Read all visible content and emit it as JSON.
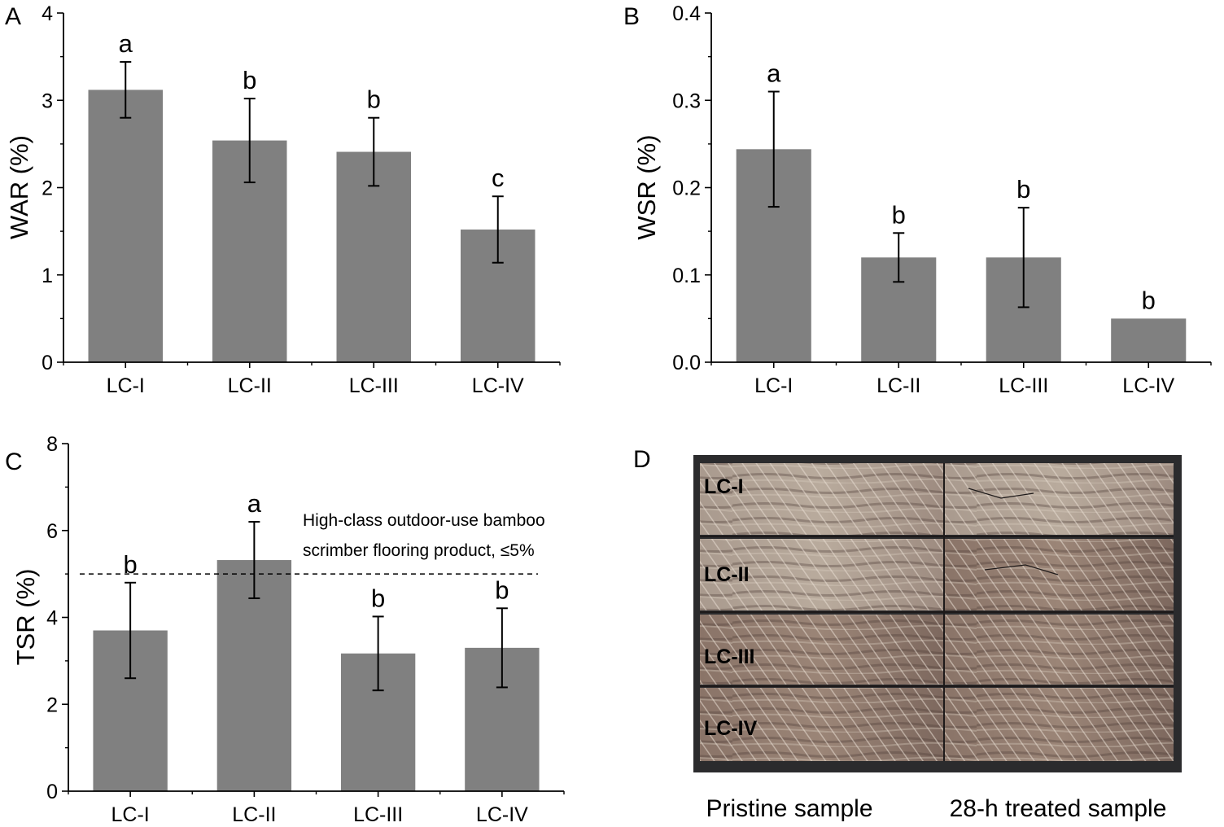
{
  "chart_data": [
    {
      "panel": "A",
      "type": "bar",
      "categories": [
        "LC-I",
        "LC-II",
        "LC-III",
        "LC-IV"
      ],
      "values": [
        3.12,
        2.54,
        2.41,
        1.52
      ],
      "errors": [
        0.32,
        0.48,
        0.39,
        0.38
      ],
      "letters": [
        "a",
        "b",
        "b",
        "c"
      ],
      "xlabel": "",
      "ylabel": "WAR (%)",
      "ylim": [
        0,
        4
      ],
      "yticks": [
        0,
        1,
        2,
        3,
        4
      ],
      "ytick_labels": [
        "0",
        "1",
        "2",
        "3",
        "4"
      ],
      "grid": false
    },
    {
      "panel": "B",
      "type": "bar",
      "categories": [
        "LC-I",
        "LC-II",
        "LC-III",
        "LC-IV"
      ],
      "values": [
        0.244,
        0.12,
        0.12,
        0.05
      ],
      "errors": [
        0.066,
        0.028,
        0.057,
        0.0
      ],
      "letters": [
        "a",
        "b",
        "b",
        "b"
      ],
      "xlabel": "",
      "ylabel": "WSR (%)",
      "ylim": [
        0,
        0.4
      ],
      "yticks": [
        0,
        0.1,
        0.2,
        0.3,
        0.4
      ],
      "ytick_labels": [
        "0.0",
        "0.1",
        "0.2",
        "0.3",
        "0.4"
      ],
      "grid": false
    },
    {
      "panel": "C",
      "type": "bar",
      "categories": [
        "LC-I",
        "LC-II",
        "LC-III",
        "LC-IV"
      ],
      "values": [
        3.7,
        5.32,
        3.17,
        3.3
      ],
      "errors": [
        1.1,
        0.88,
        0.85,
        0.91
      ],
      "letters": [
        "b",
        "a",
        "b",
        "b"
      ],
      "xlabel": "",
      "ylabel": "TSR (%)",
      "ylim": [
        0,
        8
      ],
      "yticks": [
        0,
        2,
        4,
        6,
        8
      ],
      "ytick_labels": [
        "0",
        "2",
        "4",
        "6",
        "8"
      ],
      "reference_line": 5,
      "annotation": [
        "High-class outdoor-use bamboo",
        "scrimber flooring product, ≤5%"
      ],
      "grid": false
    }
  ],
  "panel_d": {
    "label": "D",
    "sample_labels": [
      "LC-I",
      "LC-II",
      "LC-III",
      "LC-IV"
    ],
    "caption_left": "Pristine sample",
    "caption_right": "28-h treated sample"
  },
  "colors": {
    "bar": "#808080",
    "axis": "#000000",
    "wood_light": "#bfb3a6",
    "wood_dark": "#6e5a52",
    "photo_background": "#2b2b2d"
  }
}
